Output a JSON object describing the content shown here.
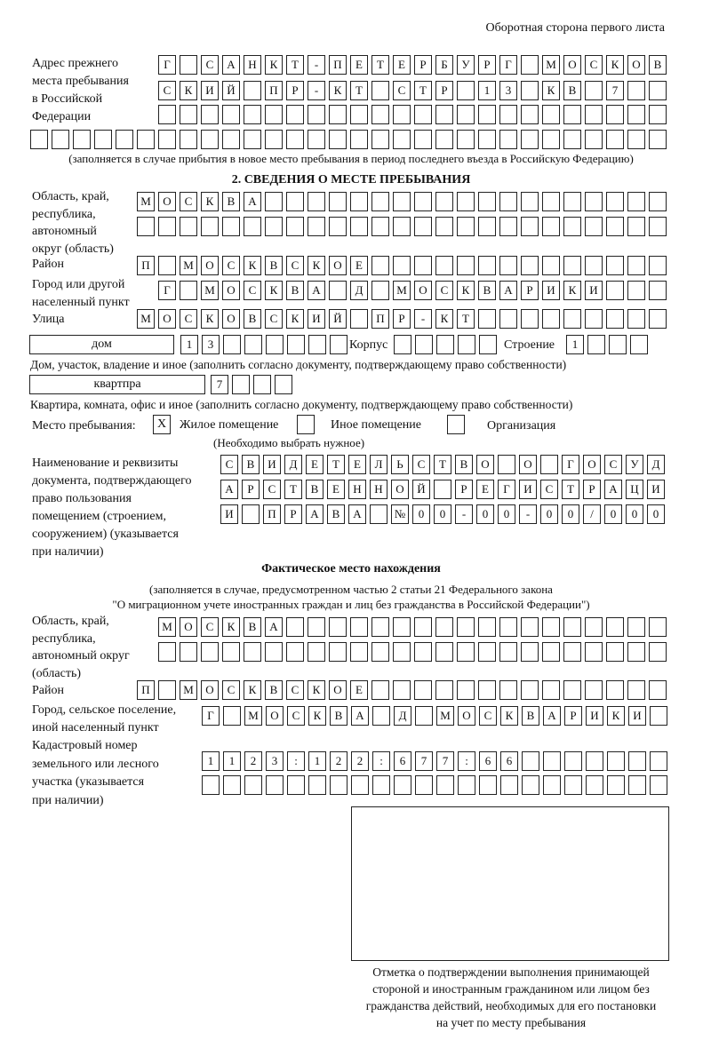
{
  "header": "Оборотная сторона первого листа",
  "prev_address": {
    "label": "Адрес прежнего\nместа пребывания\nв Российской\nФедерации",
    "rows": [
      [
        "Г",
        "",
        "С",
        "А",
        "Н",
        "К",
        "Т",
        "-",
        "П",
        "Е",
        "Т",
        "Е",
        "Р",
        "Б",
        "У",
        "Р",
        "Г",
        "",
        "М",
        "О",
        "С",
        "К",
        "О",
        "В"
      ],
      [
        "С",
        "К",
        "И",
        "Й",
        "",
        "П",
        "Р",
        "-",
        "К",
        "Т",
        "",
        "С",
        "Т",
        "Р",
        "",
        "1",
        "3",
        "",
        "К",
        "В",
        "",
        "7",
        "",
        ""
      ],
      [],
      []
    ],
    "note": "(заполняется в случае прибытия в новое место пребывания в период последнего въезда в Российскую Федерацию)"
  },
  "section2": {
    "title": "2. СВЕДЕНИЯ О МЕСТЕ ПРЕБЫВАНИЯ",
    "region_label": "Область, край,\nреспублика,\nавтономный\nокруг (область)",
    "region_rows": [
      [
        "М",
        "О",
        "С",
        "К",
        "В",
        "А"
      ],
      []
    ],
    "district_label": "Район",
    "district": [
      "П",
      "",
      "М",
      "О",
      "С",
      "К",
      "В",
      "С",
      "К",
      "О",
      "Е"
    ],
    "city_label": "Город или другой\nнаселенный пункт",
    "city": [
      "Г",
      "",
      "М",
      "О",
      "С",
      "К",
      "В",
      "А",
      "",
      "Д",
      "",
      "М",
      "О",
      "С",
      "К",
      "В",
      "А",
      "Р",
      "И",
      "К",
      "И"
    ],
    "street_label": "Улица",
    "street": [
      "М",
      "О",
      "С",
      "К",
      "О",
      "В",
      "С",
      "К",
      "И",
      "Й",
      "",
      "П",
      "Р",
      "-",
      "К",
      "Т"
    ],
    "house_type": "дом",
    "house": [
      "1",
      "3"
    ],
    "korpus_label": "Корпус",
    "korpus": [],
    "building_label": "Строение",
    "building": [
      "1"
    ],
    "house_note": "Дом, участок, владение и иное (заполнить согласно документу, подтверждающему право собственности)",
    "apt_type": "квартпра",
    "apt": [
      "7"
    ],
    "apt_note": "Квартира, комната, офис и иное (заполнить согласно документу, подтверждающему право собственности)",
    "place_label": "Место пребывания:",
    "place_options": [
      {
        "label": "Жилое помещение",
        "mark": "X"
      },
      {
        "label": "Иное помещение",
        "mark": ""
      },
      {
        "label": "Организация",
        "mark": ""
      }
    ],
    "place_note": "(Необходимо выбрать нужное)",
    "doc_label": "Наименование и реквизиты\nдокумента, подтверждающего\nправо пользования\nпомещением (строением,\nсооружением) (указывается\nпри наличии)",
    "doc_rows": [
      [
        "С",
        "В",
        "И",
        "Д",
        "Е",
        "Т",
        "Е",
        "Л",
        "Ь",
        "С",
        "Т",
        "В",
        "О",
        "",
        "О",
        "",
        "Г",
        "О",
        "С",
        "У",
        "Д"
      ],
      [
        "А",
        "Р",
        "С",
        "Т",
        "В",
        "Е",
        "Н",
        "Н",
        "О",
        "Й",
        "",
        "Р",
        "Е",
        "Г",
        "И",
        "С",
        "Т",
        "Р",
        "А",
        "Ц",
        "И"
      ],
      [
        "И",
        "",
        "П",
        "Р",
        "А",
        "В",
        "А",
        "",
        "№",
        "0",
        "0",
        "-",
        "0",
        "0",
        "-",
        "0",
        "0",
        "/",
        "0",
        "0",
        "0"
      ]
    ]
  },
  "actual": {
    "title": "Фактическое место нахождения",
    "note1": "(заполняется в случае, предусмотренном частью 2 статьи 21 Федерального закона",
    "note2": "\"О миграционном учете иностранных граждан и лиц без гражданства в Российской Федерации\")",
    "region_label": "Область, край,\nреспублика,\nавтономный округ\n(область)",
    "region_rows": [
      [
        "М",
        "О",
        "С",
        "К",
        "В",
        "А"
      ],
      []
    ],
    "district_label": "Район",
    "district": [
      "П",
      "",
      "М",
      "О",
      "С",
      "К",
      "В",
      "С",
      "К",
      "О",
      "Е"
    ],
    "city_label": "Город, сельское поселение,\nиной населенный пункт",
    "city": [
      "Г",
      "",
      "М",
      "О",
      "С",
      "К",
      "В",
      "А",
      "",
      "Д",
      "",
      "М",
      "О",
      "С",
      "К",
      "В",
      "А",
      "Р",
      "И",
      "К",
      "И"
    ],
    "cadastral_label": "Кадастровый номер\nземельного или лесного\nучастка (указывается\nпри наличии)",
    "cadastral_rows": [
      [
        "1",
        "1",
        "2",
        "3",
        ":",
        "1",
        "2",
        "2",
        ":",
        "6",
        "7",
        "7",
        ":",
        "6",
        "6"
      ],
      []
    ]
  },
  "stamp_caption": "Отметка о подтверждении выполнения принимающей\nстороной и иностранным гражданином или лицом без\nгражданства действий, необходимых для его постановки\nна учет по месту пребывания"
}
